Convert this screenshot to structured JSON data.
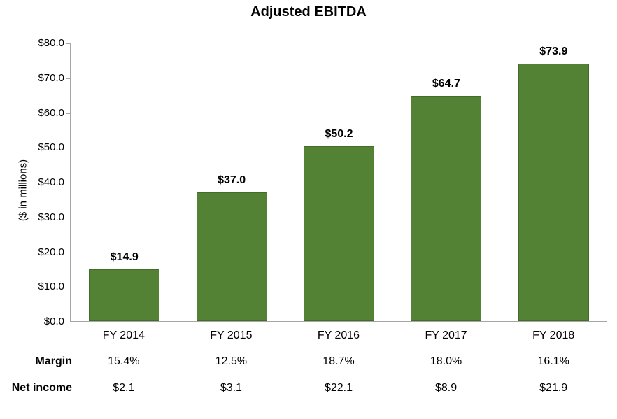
{
  "chart_data": {
    "type": "bar",
    "title": "Adjusted EBITDA",
    "ylabel": "($ in millions)",
    "categories": [
      "FY 2014",
      "FY 2015",
      "FY 2016",
      "FY 2017",
      "FY 2018"
    ],
    "values": [
      14.9,
      37.0,
      50.2,
      64.7,
      73.9
    ],
    "value_labels": [
      "$14.9",
      "$37.0",
      "$50.2",
      "$64.7",
      "$73.9"
    ],
    "ylim": [
      0,
      80
    ],
    "ytick_step": 10,
    "ytick_labels": [
      "$0.0",
      "$10.0",
      "$20.0",
      "$30.0",
      "$40.0",
      "$50.0",
      "$60.0",
      "$70.0",
      "$80.0"
    ],
    "grid": false,
    "legend": "none",
    "bar_color": "#548235",
    "bar_border_color": "#446b29",
    "axis_color": "#a6a6a6",
    "rows": [
      {
        "label": "Margin",
        "values": [
          "15.4%",
          "12.5%",
          "18.7%",
          "18.0%",
          "16.1%"
        ]
      },
      {
        "label": "Net income",
        "values": [
          "$2.1",
          "$3.1",
          "$22.1",
          "$8.9",
          "$21.9"
        ]
      }
    ]
  }
}
